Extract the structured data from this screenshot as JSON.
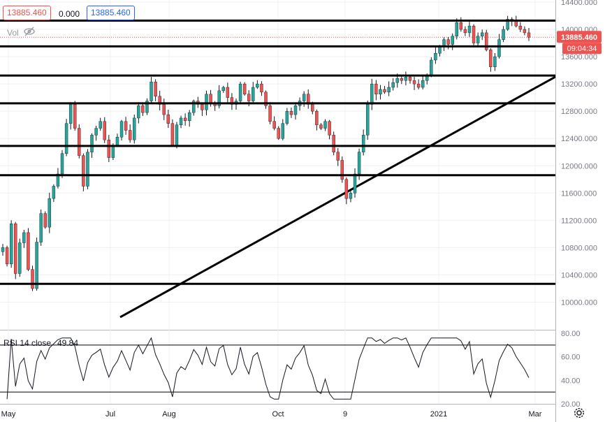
{
  "header": {
    "bid": "13885.460",
    "spread": "0.000",
    "ask": "13885.460",
    "vol_label": "Vol"
  },
  "rsi": {
    "label": "RSI 14 close",
    "value": "49.84",
    "ticks": [
      "80.00",
      "60.00",
      "40.00",
      "20.00"
    ],
    "ylim": [
      20,
      80
    ],
    "bands": [
      70,
      30
    ]
  },
  "colors": {
    "up": "#26a69a",
    "down": "#ef5350",
    "hline": "#000000",
    "current_price": "#ef5350"
  },
  "chart_data": [
    {
      "type": "candlestick",
      "ylim": [
        9800,
        14400
      ],
      "y_ticks": [
        14400,
        14000,
        13600,
        13200,
        12800,
        12400,
        12000,
        11600,
        11200,
        10800,
        10400,
        10000
      ],
      "x_tick_labels": [
        "May",
        "Jul",
        "Aug",
        "Oct",
        "9",
        "2021",
        "Mar"
      ],
      "x_tick_pos": [
        12,
        158,
        242,
        398,
        494,
        628,
        766
      ],
      "y_tick_labels_shown": [
        "14400.000",
        "14000.000",
        "13600.000",
        "13200.000",
        "12800.000",
        "12400.000",
        "12000.000",
        "11600.000",
        "11200.000",
        "10800.000",
        "10400.000",
        "10000.000"
      ],
      "horizontal_levels": [
        {
          "value": 14128.768,
          "label": "14128.768"
        },
        {
          "value": 13751.0,
          "label": ""
        },
        {
          "value": 13322.691,
          "label": "13322.691"
        },
        {
          "value": 12916.111,
          "label": "12916.111"
        },
        {
          "value": 12290.407,
          "label": "12290.407"
        },
        {
          "value": 11861.85,
          "label": "11861.850"
        },
        {
          "value": 10268.163,
          "label": "10268.163"
        }
      ],
      "current_price": {
        "value": 13885.46,
        "label": "13885.460",
        "countdown": "09:04:34"
      },
      "trendline": {
        "from": [
          172,
          9780
        ],
        "to": [
          796,
          13310
        ]
      },
      "ohlc_path": [
        10800,
        10560,
        11150,
        10420,
        10870,
        11020,
        10480,
        10200,
        10880,
        11300,
        11100,
        11520,
        11700,
        11880,
        12180,
        12620,
        12900,
        12550,
        12150,
        11700,
        12200,
        12450,
        12550,
        12650,
        12380,
        12120,
        12300,
        12420,
        12650,
        12520,
        12380,
        12700,
        12880,
        12780,
        12950,
        13230,
        13020,
        12900,
        12750,
        12620,
        12300,
        12600,
        12700,
        12660,
        12780,
        12950,
        12900,
        12820,
        13050,
        12920,
        12880,
        13100,
        13150,
        13000,
        12900,
        12950,
        13200,
        13050,
        12950,
        13150,
        13200,
        13080,
        12880,
        12650,
        12550,
        12400,
        12620,
        12800,
        12750,
        12880,
        12950,
        13050,
        12900,
        12800,
        12600,
        12550,
        12650,
        12450,
        12200,
        12080,
        11800,
        11520,
        11600,
        11880,
        12200,
        12450,
        12900,
        13200,
        13050,
        13120,
        13080,
        13150,
        13220,
        13280,
        13250,
        13300,
        13250,
        13200,
        13150,
        13250,
        13320,
        13550,
        13650,
        13750,
        13850,
        13780,
        13900,
        14100,
        14000,
        13950,
        14050,
        13800,
        13900,
        13950,
        13700,
        13450,
        13600,
        13850,
        14000,
        14150,
        14120,
        14050,
        14000,
        13950,
        13885
      ]
    }
  ]
}
